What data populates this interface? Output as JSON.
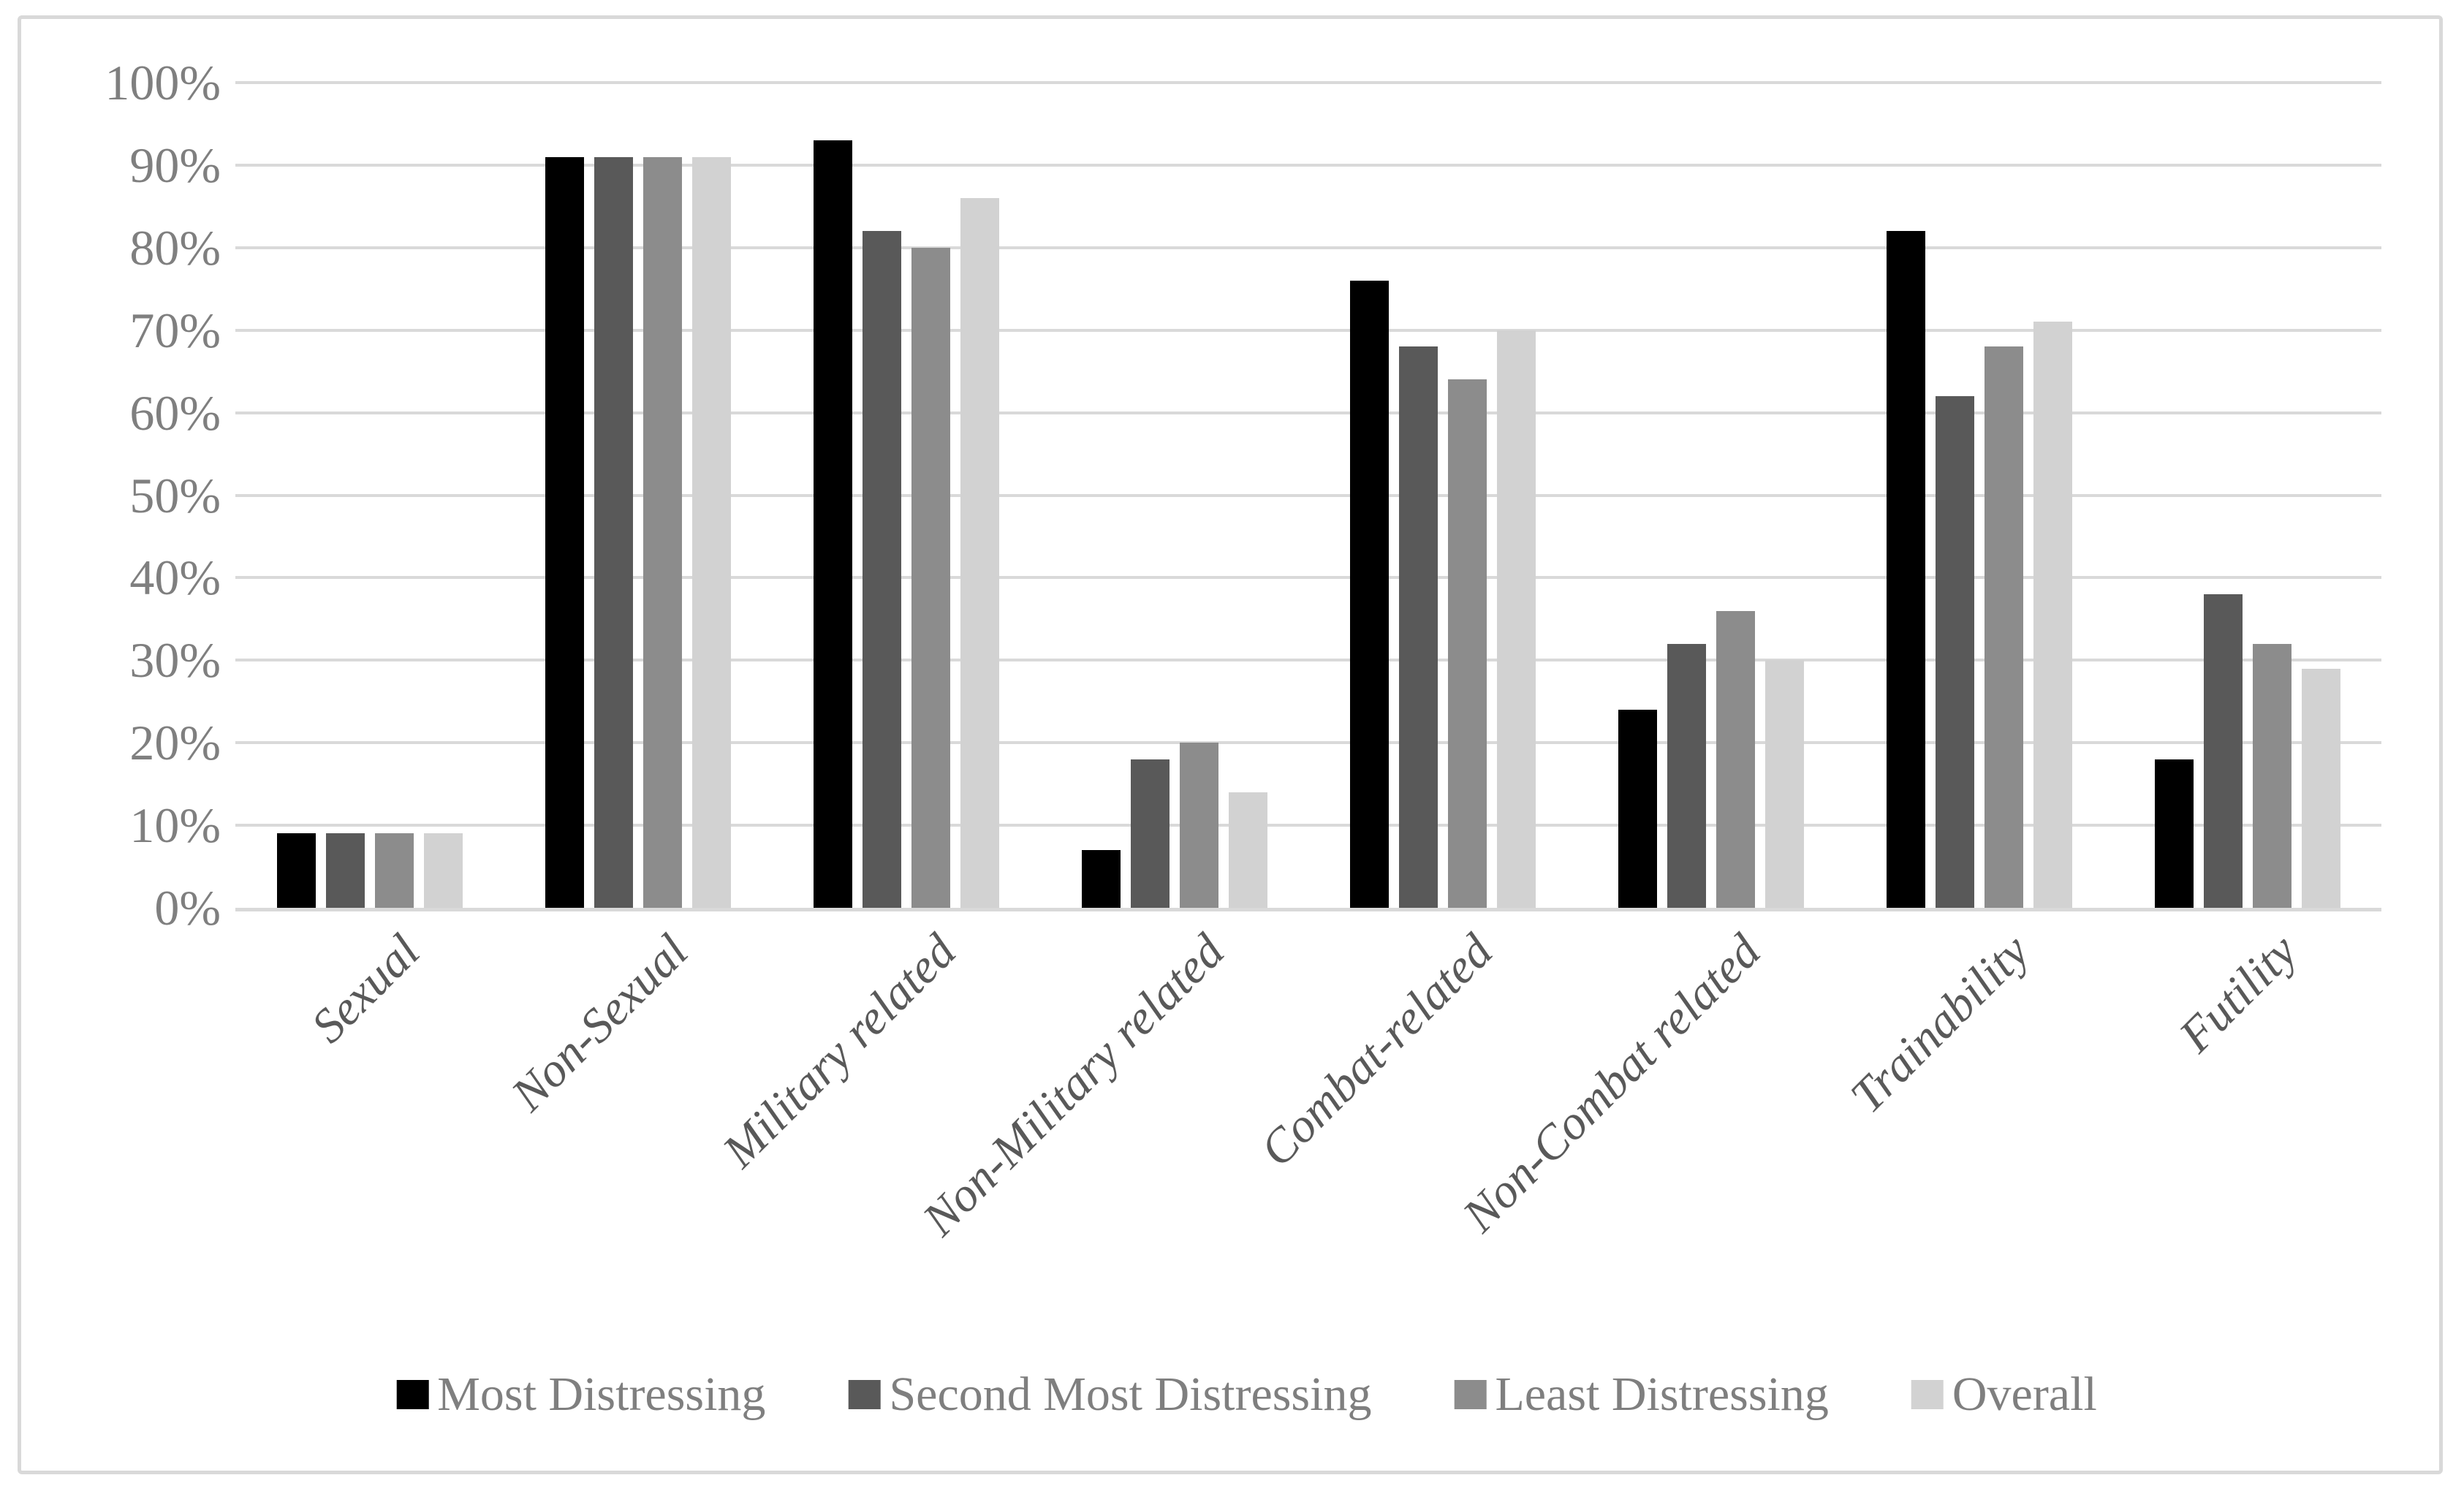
{
  "figure": {
    "kind": "grouped-bar-chart",
    "background_color": "#ffffff",
    "border_color": "#d9d9d9"
  },
  "y_axis": {
    "min": 0,
    "max": 100,
    "step": 10,
    "tick_labels": [
      "0%",
      "10%",
      "20%",
      "30%",
      "40%",
      "50%",
      "60%",
      "70%",
      "80%",
      "90%",
      "100%"
    ],
    "label_color": "#7f7f7f",
    "gridline_color": "#d9d9d9",
    "axis_line_color": "#d9d9d9"
  },
  "x_axis": {
    "label_color": "#595959",
    "label_style": "italic",
    "label_rotation_degrees": 45
  },
  "legend": {
    "position": "bottom",
    "text_color": "#7f7f7f",
    "items": [
      {
        "label": "Most Distressing",
        "color": "#000000"
      },
      {
        "label": "Second Most Distressing",
        "color": "#595959"
      },
      {
        "label": "Least Distressing",
        "color": "#8c8c8c"
      },
      {
        "label": "Overall",
        "color": "#d2d2d2"
      }
    ]
  },
  "chart_data": {
    "type": "bar",
    "title": "",
    "xlabel": "",
    "ylabel": "",
    "ylim": [
      0,
      100
    ],
    "y_tick_format": "percent",
    "grid": "horizontal",
    "legend_position": "bottom",
    "categories": [
      "Sexual",
      "Non-Sexual",
      "Military related",
      "Non-Military related",
      "Combat-related",
      "Non-Combat related",
      "Trainability",
      "Futility"
    ],
    "series": [
      {
        "name": "Most Distressing",
        "color": "#000000",
        "values": [
          9,
          91,
          93,
          7,
          76,
          24,
          82,
          18
        ]
      },
      {
        "name": "Second Most Distressing",
        "color": "#595959",
        "values": [
          9,
          91,
          82,
          18,
          68,
          32,
          62,
          38
        ]
      },
      {
        "name": "Least Distressing",
        "color": "#8c8c8c",
        "values": [
          9,
          91,
          80,
          20,
          64,
          36,
          68,
          32
        ]
      },
      {
        "name": "Overall",
        "color": "#d2d2d2",
        "values": [
          9,
          91,
          86,
          14,
          70,
          30,
          71,
          29
        ]
      }
    ]
  }
}
